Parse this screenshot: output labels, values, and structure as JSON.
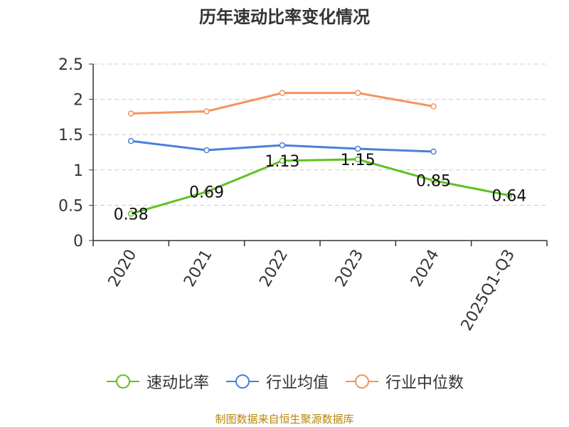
{
  "chart_data": {
    "type": "line",
    "title": "历年速动比率变化情况",
    "categories": [
      "2020",
      "2021",
      "2022",
      "2023",
      "2024",
      "2025Q1-Q3"
    ],
    "ylim": [
      0,
      2.5
    ],
    "yticks": [
      "0",
      "0.5",
      "1",
      "1.5",
      "2",
      "2.5"
    ],
    "grid": true,
    "legend_position": "bottom",
    "series": [
      {
        "name": "速动比率",
        "color": "#5ec224",
        "values": [
          0.38,
          0.69,
          1.13,
          1.15,
          0.85,
          0.64
        ],
        "labels": [
          "0.38",
          "0.69",
          "1.13",
          "1.15",
          "0.85",
          "0.64"
        ]
      },
      {
        "name": "行业均值",
        "color": "#4a7fd9",
        "values": [
          1.41,
          1.28,
          1.35,
          1.3,
          1.26,
          null
        ]
      },
      {
        "name": "行业中位数",
        "color": "#f5935e",
        "values": [
          1.8,
          1.83,
          2.09,
          2.09,
          1.9,
          null
        ]
      }
    ]
  },
  "source": "制图数据来自恒生聚源数据库"
}
